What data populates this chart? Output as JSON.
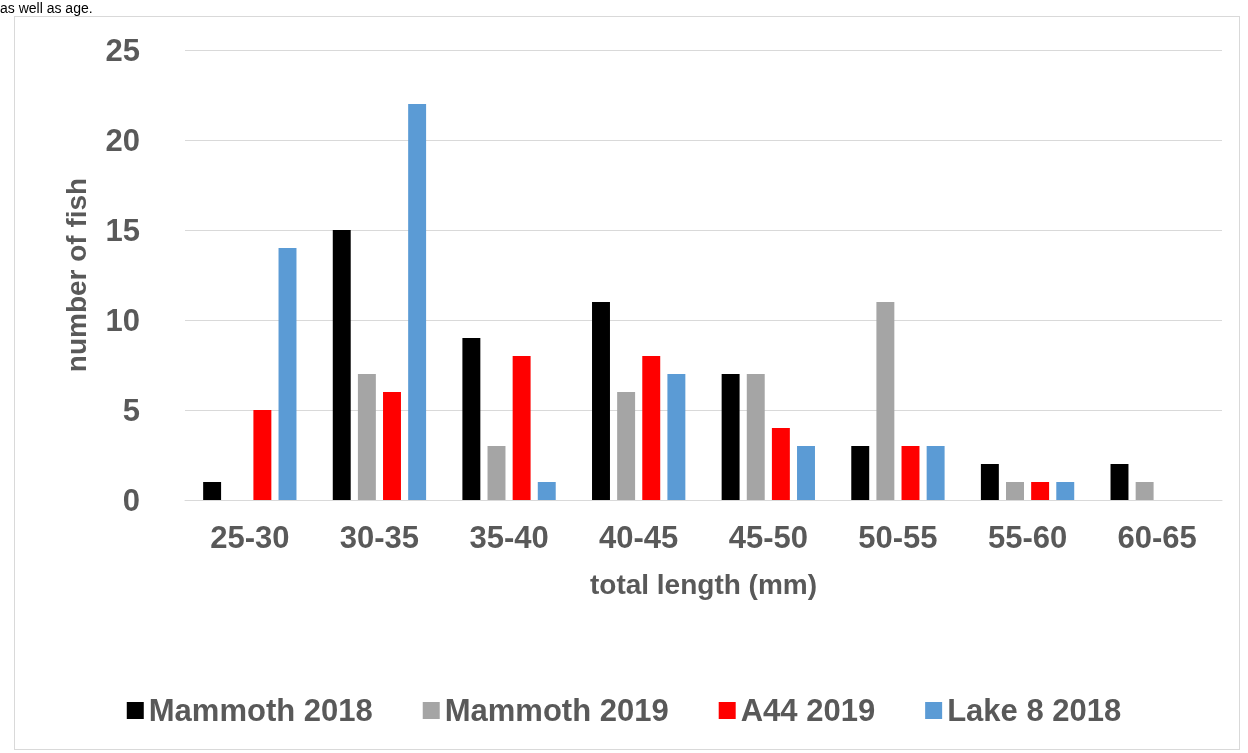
{
  "chart_data": {
    "type": "bar",
    "categories": [
      "25-30",
      "30-35",
      "35-40",
      "40-45",
      "45-50",
      "50-55",
      "55-60",
      "60-65"
    ],
    "series": [
      {
        "name": "Mammoth 2018",
        "color": "#000000",
        "values": [
          1,
          15,
          9,
          11,
          7,
          3,
          2,
          2
        ]
      },
      {
        "name": "Mammoth 2019",
        "color": "#a5a5a5",
        "values": [
          0,
          7,
          3,
          6,
          7,
          11,
          1,
          1
        ]
      },
      {
        "name": "A44 2019",
        "color": "#ff0000",
        "values": [
          5,
          6,
          8,
          8,
          4,
          3,
          1,
          0
        ]
      },
      {
        "name": "Lake 8 2018",
        "color": "#5b9bd5",
        "values": [
          14,
          22,
          1,
          7,
          3,
          3,
          1,
          0
        ]
      }
    ],
    "xlabel": "total length (mm)",
    "ylabel": "number of fish",
    "ylim": [
      0,
      25
    ],
    "yticks": [
      0,
      5,
      10,
      15,
      20,
      25
    ],
    "grid": "y",
    "legend": "bottom",
    "annotations": [
      "as well as age."
    ]
  }
}
